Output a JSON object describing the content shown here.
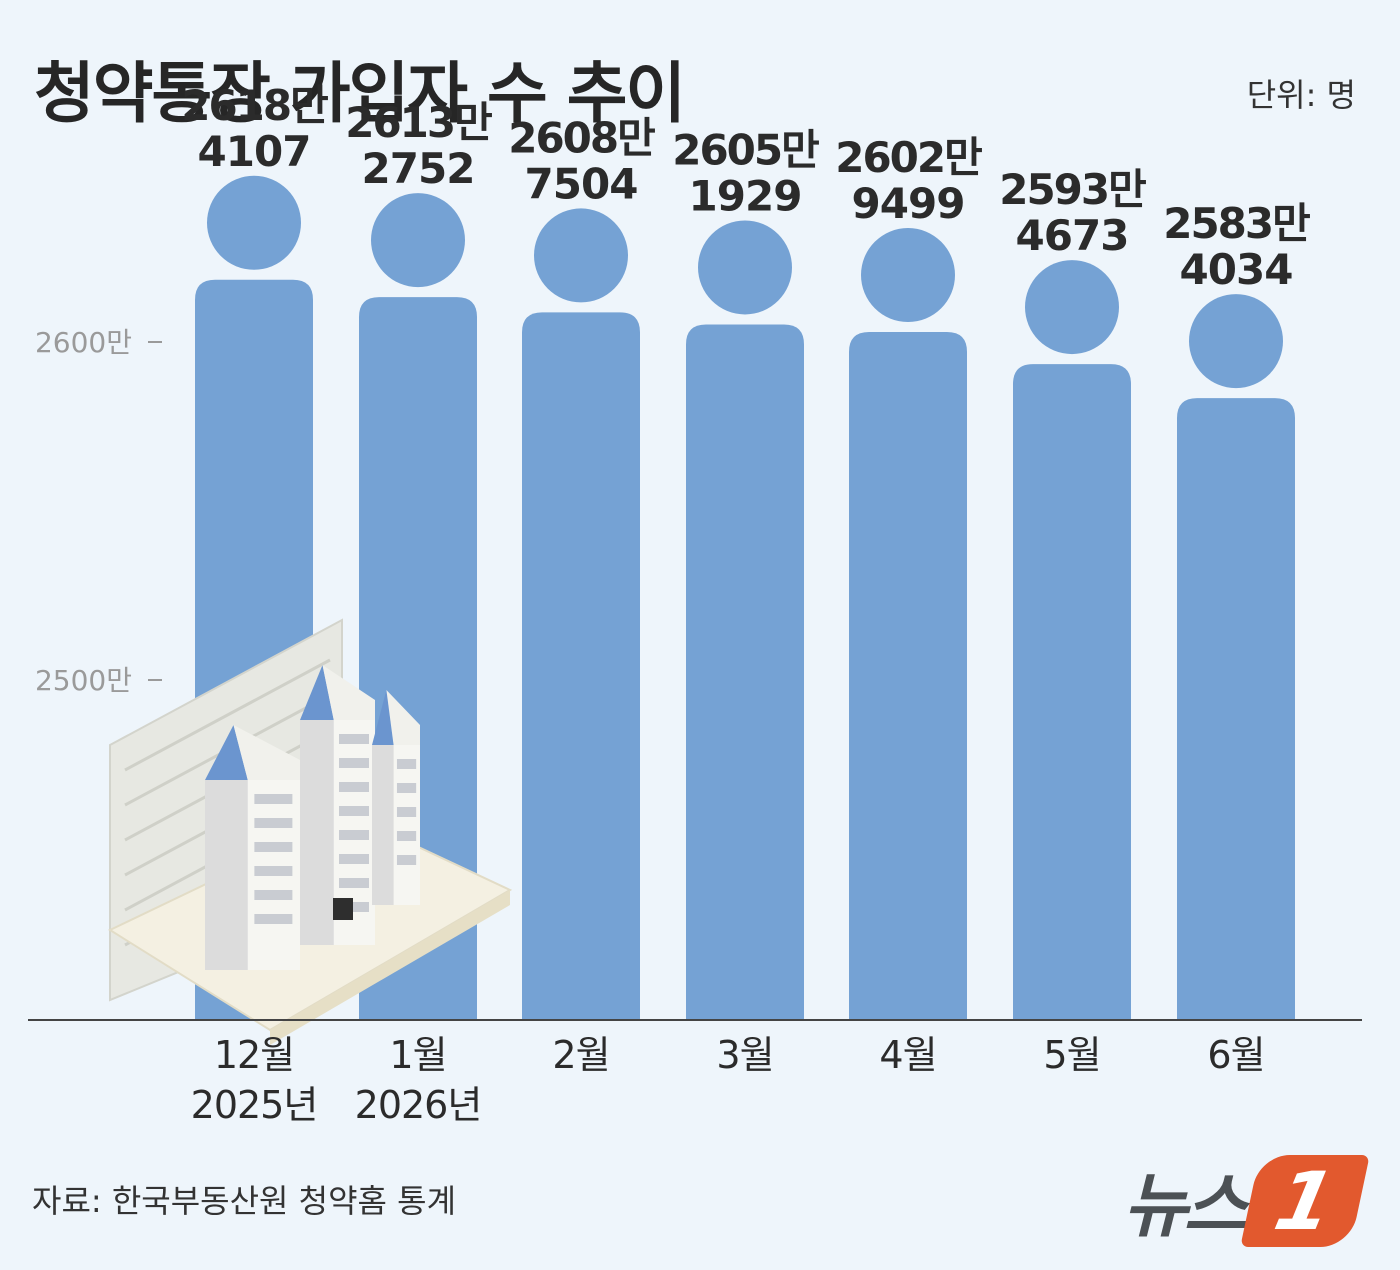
{
  "header": {
    "title": "청약통장 가입자 수 추이",
    "unit": "단위: 명"
  },
  "footer": {
    "source": "자료: 한국부동산원 청약홈 통계",
    "logo_text": "뉴스",
    "logo_mark": "1"
  },
  "colors": {
    "bar": "#75a2d4",
    "background": "#eef5fb",
    "logo_accent": "#e2592e",
    "axis": "#444444"
  },
  "chart_data": {
    "type": "bar",
    "title": "청약통장 가입자 수 추이",
    "ylabel": "",
    "xlabel": "",
    "unit": "명",
    "categories": [
      "12월\n2025년",
      "1월\n2026년",
      "2월",
      "3월",
      "4월",
      "5월",
      "6월"
    ],
    "values": [
      26184107,
      26132752,
      26087504,
      26051929,
      26029499,
      25934673,
      25834034
    ],
    "data_labels": [
      [
        "2618만",
        "4107"
      ],
      [
        "2613만",
        "2752"
      ],
      [
        "2608만",
        "7504"
      ],
      [
        "2605만",
        "1929"
      ],
      [
        "2602만",
        "9499"
      ],
      [
        "2593만",
        "4673"
      ],
      [
        "2583만",
        "4034"
      ]
    ],
    "y_ticks": [
      {
        "value": 25000000,
        "label": "2500만"
      },
      {
        "value": 26000000,
        "label": "2600만"
      }
    ],
    "grid": false,
    "legend": "none"
  },
  "illustration": {
    "icon": "apartment-buildings-on-document-icon"
  }
}
